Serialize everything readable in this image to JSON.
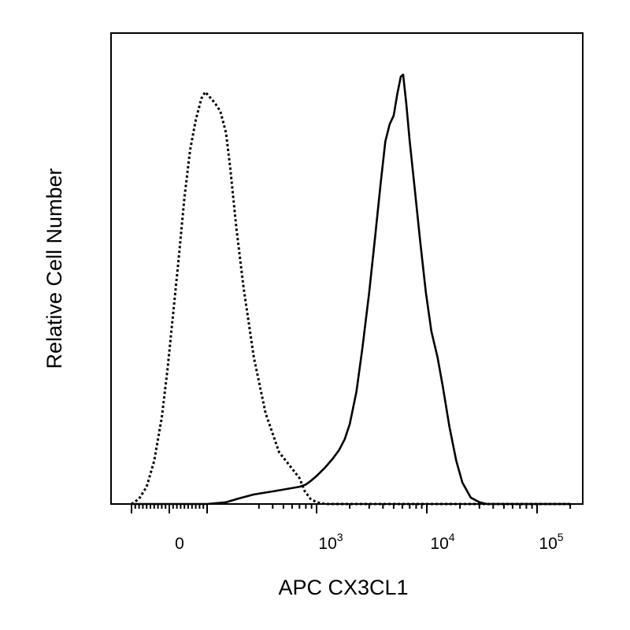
{
  "chart_data": {
    "type": "line",
    "title": "",
    "xlabel": "APC CX3CL1",
    "ylabel": "Relative Cell Number",
    "x_scale": "biexponential",
    "xlim": [
      -200,
      200000
    ],
    "ylim": [
      0,
      1
    ],
    "grid": false,
    "legend": "none",
    "x_ticks": [
      {
        "value": 0,
        "base": "0",
        "exp": ""
      },
      {
        "value": 1000,
        "base": "10",
        "exp": "3"
      },
      {
        "value": 10000,
        "base": "10",
        "exp": "4"
      },
      {
        "value": 100000,
        "base": "10",
        "exp": "5"
      }
    ],
    "series": [
      {
        "style": "dotted",
        "color": "#000000",
        "points": [
          [
            -200,
            0.0
          ],
          [
            -160,
            0.012
          ],
          [
            -120,
            0.04
          ],
          [
            -80,
            0.1
          ],
          [
            -40,
            0.2
          ],
          [
            -10,
            0.31
          ],
          [
            20,
            0.44
          ],
          [
            50,
            0.57
          ],
          [
            80,
            0.71
          ],
          [
            110,
            0.82
          ],
          [
            140,
            0.89
          ],
          [
            170,
            0.94
          ],
          [
            190,
            0.955
          ],
          [
            210,
            0.945
          ],
          [
            240,
            0.93
          ],
          [
            270,
            0.91
          ],
          [
            300,
            0.86
          ],
          [
            340,
            0.78
          ],
          [
            390,
            0.64
          ],
          [
            440,
            0.5
          ],
          [
            500,
            0.34
          ],
          [
            560,
            0.21
          ],
          [
            620,
            0.12
          ],
          [
            700,
            0.06
          ],
          [
            780,
            0.03
          ],
          [
            880,
            0.012
          ],
          [
            1000,
            0.004
          ],
          [
            1200,
            0.0
          ],
          [
            200000,
            0.0
          ]
        ]
      },
      {
        "style": "solid",
        "color": "#000000",
        "points": [
          [
            -200,
            0.0
          ],
          [
            200,
            0.0
          ],
          [
            300,
            0.004
          ],
          [
            400,
            0.012
          ],
          [
            500,
            0.022
          ],
          [
            600,
            0.03
          ],
          [
            700,
            0.04
          ],
          [
            800,
            0.045
          ],
          [
            900,
            0.055
          ],
          [
            1000,
            0.065
          ],
          [
            1200,
            0.085
          ],
          [
            1400,
            0.105
          ],
          [
            1600,
            0.125
          ],
          [
            1800,
            0.15
          ],
          [
            2000,
            0.185
          ],
          [
            2300,
            0.26
          ],
          [
            2600,
            0.36
          ],
          [
            3000,
            0.49
          ],
          [
            3400,
            0.62
          ],
          [
            3800,
            0.74
          ],
          [
            4200,
            0.84
          ],
          [
            4600,
            0.88
          ],
          [
            5000,
            0.9
          ],
          [
            5400,
            0.95
          ],
          [
            5800,
            0.99
          ],
          [
            6100,
            0.995
          ],
          [
            6500,
            0.93
          ],
          [
            7000,
            0.84
          ],
          [
            7700,
            0.74
          ],
          [
            8700,
            0.61
          ],
          [
            9800,
            0.49
          ],
          [
            11000,
            0.4
          ],
          [
            12500,
            0.34
          ],
          [
            14000,
            0.27
          ],
          [
            16000,
            0.18
          ],
          [
            18500,
            0.1
          ],
          [
            21000,
            0.05
          ],
          [
            25000,
            0.015
          ],
          [
            30000,
            0.004
          ],
          [
            35000,
            0.0
          ],
          [
            200000,
            0.0
          ]
        ]
      }
    ]
  }
}
